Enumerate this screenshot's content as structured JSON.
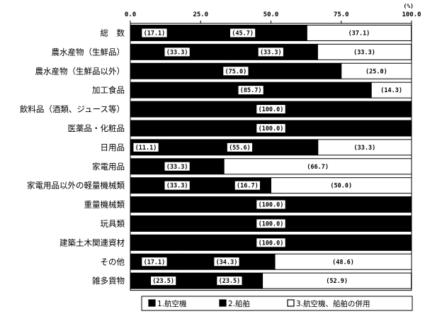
{
  "chart_data": {
    "type": "bar",
    "orientation": "horizontal",
    "stacked": true,
    "unit": "(%)",
    "xlim": [
      0,
      100
    ],
    "xticks": [
      "0.0",
      "25.0",
      "50.0",
      "75.0",
      "100.0"
    ],
    "categories": [
      "総　数",
      "農水産物（生鮮品）",
      "農水産物（生鮮品以外）",
      "加工食品",
      "飲料品（酒類、ジュース等）",
      "医薬品・化粧品",
      "日用品",
      "家電用品",
      "家電用品以外の軽量機械類",
      "重量機械類",
      "玩具類",
      "建築土木関連資材",
      "その他",
      "雑多貨物"
    ],
    "series": [
      {
        "name": "1.航空機",
        "values": [
          17.1,
          33.3,
          0,
          0,
          0,
          0,
          11.1,
          33.3,
          33.3,
          0,
          0,
          0,
          17.1,
          23.5
        ],
        "labels": [
          "(17.1)",
          "(33.3)",
          "",
          "",
          "",
          "",
          "(11.1)",
          "(33.3)",
          "(33.3)",
          "",
          "",
          "",
          "(17.1)",
          "(23.5)"
        ]
      },
      {
        "name": "2.船舶",
        "values": [
          45.7,
          33.3,
          75.0,
          85.7,
          100.0,
          100.0,
          55.6,
          0,
          16.7,
          100.0,
          100.0,
          100.0,
          34.3,
          23.5
        ],
        "labels": [
          "(45.7)",
          "(33.3)",
          "(75.0)",
          "(85.7)",
          "(100.0)",
          "(100.0)",
          "(55.6)",
          "",
          "(16.7)",
          "(100.0)",
          "(100.0)",
          "(100.0)",
          "(34.3)",
          "(23.5)"
        ]
      },
      {
        "name": "3.航空機、船舶の併用",
        "values": [
          37.1,
          33.3,
          25.0,
          14.3,
          0,
          0,
          33.3,
          66.7,
          50.0,
          0,
          0,
          0,
          48.6,
          52.9
        ],
        "labels": [
          "(37.1)",
          "(33.3)",
          "(25.0)",
          "(14.3)",
          "",
          "",
          "(33.3)",
          "(66.7)",
          "(50.0)",
          "",
          "",
          "",
          "(48.6)",
          "(52.9)"
        ]
      }
    ],
    "legend_position": "bottom",
    "grid": false
  },
  "legend": {
    "items": [
      {
        "marker": "■",
        "label": "1.航空機"
      },
      {
        "marker": "■",
        "label": "2.船舶"
      },
      {
        "marker": "□",
        "label": "3.航空機、船舶の併用"
      }
    ]
  }
}
